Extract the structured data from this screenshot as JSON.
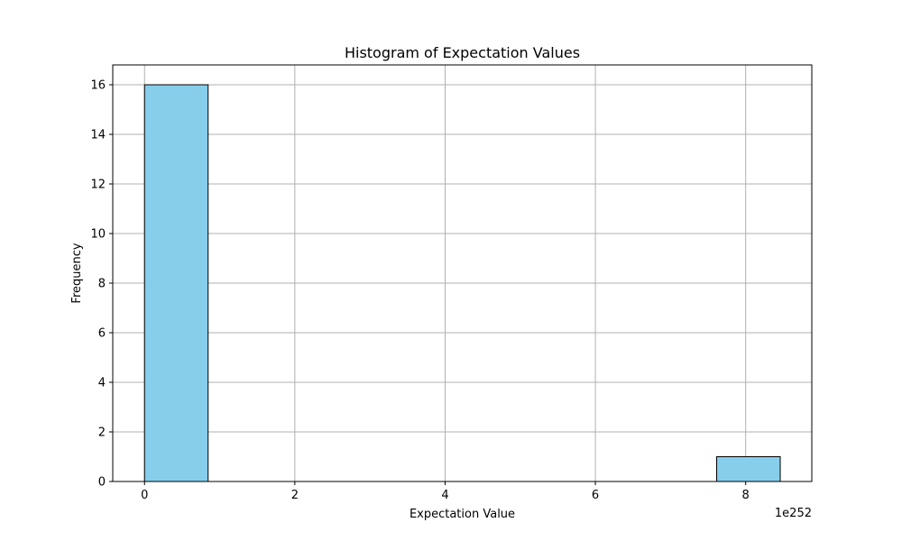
{
  "chart_data": {
    "type": "bar",
    "title": "Histogram of Expectation Values",
    "xlabel": "Expectation Value",
    "ylabel": "Frequency",
    "x_offset_label": "1e252",
    "x_unit_scale": "1e252",
    "xlim": [
      -0.423,
      8.88
    ],
    "ylim": [
      0,
      16.8
    ],
    "grid": true,
    "x_ticks": [
      {
        "value": 0,
        "label": "0"
      },
      {
        "value": 2,
        "label": "2"
      },
      {
        "value": 4,
        "label": "4"
      },
      {
        "value": 6,
        "label": "6"
      },
      {
        "value": 8,
        "label": "8"
      }
    ],
    "y_ticks": [
      {
        "value": 0,
        "label": "0"
      },
      {
        "value": 2,
        "label": "2"
      },
      {
        "value": 4,
        "label": "4"
      },
      {
        "value": 6,
        "label": "6"
      },
      {
        "value": 8,
        "label": "8"
      },
      {
        "value": 10,
        "label": "10"
      },
      {
        "value": 12,
        "label": "12"
      },
      {
        "value": 14,
        "label": "14"
      },
      {
        "value": 16,
        "label": "16"
      }
    ],
    "bins": [
      {
        "start": 0.0,
        "end": 0.846,
        "count": 16
      },
      {
        "start": 0.846,
        "end": 1.692,
        "count": 0
      },
      {
        "start": 1.692,
        "end": 2.538,
        "count": 0
      },
      {
        "start": 2.538,
        "end": 3.384,
        "count": 0
      },
      {
        "start": 3.384,
        "end": 4.23,
        "count": 0
      },
      {
        "start": 4.23,
        "end": 5.076,
        "count": 0
      },
      {
        "start": 5.076,
        "end": 5.922,
        "count": 0
      },
      {
        "start": 5.922,
        "end": 6.768,
        "count": 0
      },
      {
        "start": 6.768,
        "end": 7.614,
        "count": 0
      },
      {
        "start": 7.614,
        "end": 8.46,
        "count": 1
      }
    ],
    "bar_color": "#87ceeb",
    "edge_color": "#000000",
    "grid_color": "#b0b0b0"
  }
}
